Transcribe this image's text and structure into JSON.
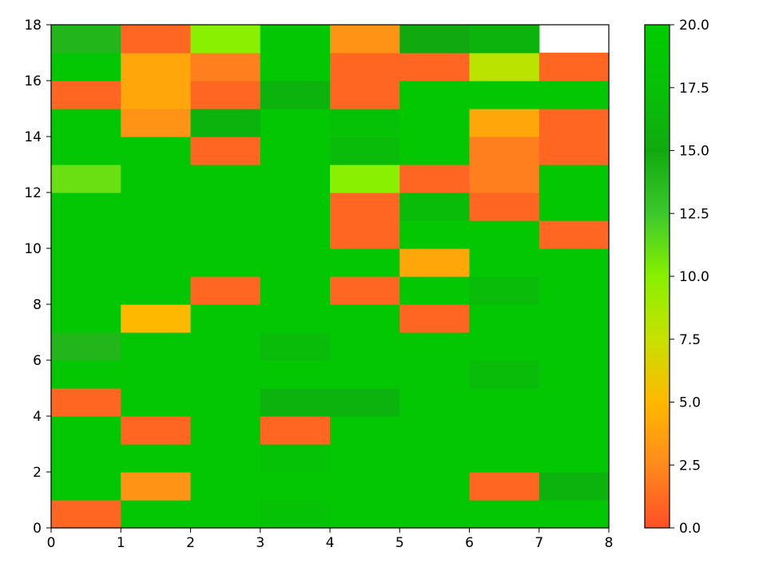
{
  "chart_data": {
    "type": "heatmap",
    "title": "",
    "xlabel": "",
    "ylabel": "",
    "x_edges": [
      0,
      1,
      2,
      3,
      4,
      5,
      6,
      7,
      8
    ],
    "xlim": [
      0,
      8
    ],
    "ylim": [
      0,
      18
    ],
    "xticks": [
      "0",
      "1",
      "2",
      "3",
      "4",
      "5",
      "6",
      "7",
      "8"
    ],
    "yticks": [
      "0",
      "2",
      "4",
      "6",
      "8",
      "10",
      "12",
      "14",
      "16",
      "18"
    ],
    "grid": false,
    "colorbar": {
      "min": 0.0,
      "max": 20.0,
      "ticks": [
        "0.0",
        "2.5",
        "5.0",
        "7.5",
        "10.0",
        "12.5",
        "15.0",
        "17.5",
        "20.0"
      ],
      "colors": [
        "#ff4e26",
        "#ff8a1c",
        "#ffb800",
        "#c8e000",
        "#88f000",
        "#3cc82c",
        "#10aa10",
        "#08c008",
        "#00cc00"
      ]
    },
    "columns": [
      {
        "x": 0,
        "height": 18,
        "values": [
          1,
          19,
          19,
          19,
          1,
          19,
          14,
          19,
          19,
          19,
          19,
          19,
          11,
          19,
          19,
          1,
          19,
          14
        ]
      },
      {
        "x": 1,
        "height": 18,
        "values": [
          19,
          3,
          19,
          1,
          19,
          19,
          19,
          5,
          19,
          19,
          19,
          19,
          19,
          19,
          3,
          4,
          4,
          1
        ]
      },
      {
        "x": 2,
        "height": 18,
        "values": [
          19,
          19,
          19,
          19,
          19,
          19,
          19,
          19,
          1,
          19,
          19,
          19,
          19,
          1,
          16,
          1,
          2,
          10
        ]
      },
      {
        "x": 3,
        "height": 18,
        "values": [
          18,
          19,
          18,
          1,
          16,
          19,
          17,
          19,
          19,
          19,
          19,
          19,
          19,
          19,
          19,
          16,
          19,
          19
        ]
      },
      {
        "x": 4,
        "height": 18,
        "values": [
          19,
          19,
          19,
          19,
          16,
          19,
          19,
          19,
          1,
          19,
          1,
          1,
          10,
          17,
          18,
          1,
          1,
          3
        ]
      },
      {
        "x": 5,
        "height": 18,
        "values": [
          19,
          19,
          19,
          19,
          19,
          19,
          19,
          1,
          19,
          4,
          19,
          17,
          1,
          19,
          19,
          19,
          1,
          15
        ]
      },
      {
        "x": 6,
        "height": 18,
        "values": [
          19,
          1,
          19,
          19,
          19,
          17,
          19,
          19,
          17,
          19,
          19,
          1,
          2,
          2,
          4,
          19,
          8,
          16
        ]
      },
      {
        "x": 7,
        "height": 17,
        "values": [
          19,
          16,
          19,
          19,
          19,
          19,
          19,
          19,
          19,
          19,
          1,
          19,
          19,
          1,
          1,
          19,
          1
        ]
      }
    ]
  }
}
